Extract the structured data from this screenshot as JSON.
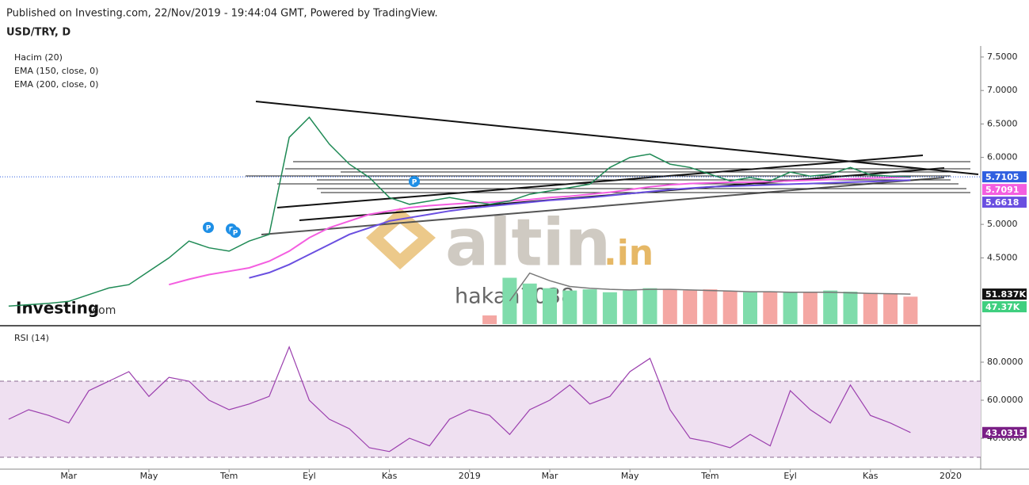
{
  "header": {
    "published": "Published on Investing.com, 22/Nov/2019 - 19:44:04 GMT, Powered by TradingView."
  },
  "watermark": {
    "main": "altin",
    "suffix": ".in",
    "author": "hakan7038",
    "brand": "Investing",
    "brand_suffix": ".com"
  },
  "event_marker": "P",
  "chart_data": [
    {
      "type": "line",
      "title": "USD/TRY, D",
      "ylim": [
        3.51,
        7.665
      ],
      "yticks": [
        {
          "value": 7.5,
          "label": "7.5000"
        },
        {
          "value": 7,
          "label": "7.0000"
        },
        {
          "value": 6.5,
          "label": "6.5000"
        },
        {
          "value": 6,
          "label": "6.0000"
        },
        {
          "value": 5,
          "label": "5.0000"
        },
        {
          "value": 4.5,
          "label": "4.5000"
        }
      ],
      "volume_lim": [
        0,
        480000
      ],
      "series": [
        {
          "color": "#1f8a55",
          "label_color": "#2f5fe0",
          "values": [
            3.78,
            3.8,
            3.82,
            3.85,
            3.95,
            4.05,
            4.1,
            4.3,
            4.5,
            4.75,
            4.65,
            4.6,
            4.75,
            4.85,
            6.3,
            6.6,
            6.2,
            5.9,
            5.7,
            5.4,
            5.3,
            5.35,
            5.4,
            5.35,
            5.3,
            5.35,
            5.45,
            5.5,
            5.55,
            5.6,
            5.85,
            6.0,
            6.05,
            5.9,
            5.85,
            5.75,
            5.65,
            5.7,
            5.65,
            5.78,
            5.72,
            5.75,
            5.85,
            5.74,
            5.72,
            5.7105,
            null,
            null,
            null
          ]
        },
        {
          "name": "EMA (150, close, 0)",
          "color": "#f45ee0",
          "values": [
            null,
            null,
            null,
            null,
            null,
            null,
            null,
            null,
            4.1,
            4.18,
            4.25,
            4.3,
            4.35,
            4.45,
            4.6,
            4.8,
            4.95,
            5.05,
            5.15,
            5.2,
            5.25,
            5.28,
            5.3,
            5.32,
            5.33,
            5.35,
            5.37,
            5.4,
            5.42,
            5.45,
            5.48,
            5.52,
            5.56,
            5.59,
            5.61,
            5.62,
            5.63,
            5.63,
            5.64,
            5.65,
            5.66,
            5.67,
            5.68,
            5.69,
            5.7,
            5.7091,
            null,
            null,
            null
          ]
        },
        {
          "name": "EMA (200, close, 0)",
          "color": "#6a4fe0",
          "values": [
            null,
            null,
            null,
            null,
            null,
            null,
            null,
            null,
            null,
            null,
            null,
            null,
            4.2,
            4.28,
            4.4,
            4.55,
            4.7,
            4.85,
            4.95,
            5.05,
            5.1,
            5.15,
            5.2,
            5.24,
            5.27,
            5.3,
            5.33,
            5.36,
            5.38,
            5.4,
            5.43,
            5.46,
            5.49,
            5.52,
            5.54,
            5.56,
            5.57,
            5.58,
            5.59,
            5.6,
            5.61,
            5.62,
            5.63,
            5.64,
            5.65,
            5.6618,
            null,
            null,
            null
          ]
        },
        {
          "name": "Hacim (20)",
          "type": "bar",
          "axis": "volume",
          "up_color": "#7fdcab",
          "down_color": "#f4a7a3",
          "label_color": "#3fcf7f",
          "ma_color": "#777777",
          "ma_label_color": "#111111",
          "values": [
            null,
            null,
            null,
            null,
            null,
            null,
            null,
            null,
            null,
            null,
            null,
            null,
            null,
            null,
            null,
            null,
            null,
            null,
            null,
            null,
            null,
            null,
            null,
            null,
            15000,
            80000,
            70000,
            62000,
            58000,
            60000,
            55000,
            58000,
            62000,
            60000,
            58000,
            60000,
            57000,
            55000,
            56000,
            55000,
            54000,
            58000,
            56000,
            54000,
            52000,
            47370,
            null,
            null,
            null
          ],
          "value_labels": [
            null,
            null,
            null,
            null,
            null,
            null,
            null,
            null,
            null,
            null,
            null,
            null,
            null,
            null,
            null,
            null,
            null,
            null,
            null,
            null,
            null,
            null,
            null,
            null,
            null,
            null,
            null,
            null,
            null,
            null,
            null,
            null,
            null,
            null,
            null,
            null,
            null,
            null,
            null,
            null,
            null,
            null,
            null,
            null,
            null,
            "47.37K",
            null,
            null,
            null
          ],
          "ma_values": [
            null,
            null,
            null,
            null,
            null,
            null,
            null,
            null,
            null,
            null,
            null,
            null,
            null,
            null,
            null,
            null,
            null,
            null,
            null,
            null,
            null,
            null,
            null,
            null,
            null,
            40000,
            88000,
            75000,
            65000,
            62000,
            60000,
            59000,
            60000,
            60000,
            59000,
            58000,
            57000,
            56000,
            56000,
            55000,
            55000,
            55000,
            54000,
            53000,
            52500,
            51837,
            null,
            null,
            null
          ],
          "ma_value_labels": [
            null,
            null,
            null,
            null,
            null,
            null,
            null,
            null,
            null,
            null,
            null,
            null,
            null,
            null,
            null,
            null,
            null,
            null,
            null,
            null,
            null,
            null,
            null,
            null,
            null,
            null,
            null,
            null,
            null,
            null,
            null,
            null,
            null,
            null,
            null,
            null,
            null,
            null,
            null,
            null,
            null,
            null,
            null,
            null,
            null,
            "51.837K",
            null,
            null,
            null
          ]
        }
      ]
    },
    {
      "type": "line",
      "title": "RSI (14)",
      "categories": [
        null,
        null,
        null,
        "Mar",
        null,
        null,
        null,
        "May",
        null,
        null,
        null,
        "Tem",
        null,
        null,
        null,
        "Eyl",
        null,
        null,
        null,
        "Kas",
        null,
        null,
        null,
        "2019",
        null,
        null,
        null,
        "Mar",
        null,
        null,
        null,
        "May",
        null,
        null,
        null,
        "Tem",
        null,
        null,
        null,
        "Eyl",
        null,
        null,
        null,
        "Kas",
        null,
        null,
        null,
        "2020",
        null
      ],
      "ylim": [
        24.6,
        97.5
      ],
      "yticks": [
        {
          "value": 80,
          "label": "80.0000"
        },
        {
          "value": 60,
          "label": "60.0000"
        },
        {
          "value": 40,
          "label": "40.0000"
        }
      ],
      "bands": [
        30,
        70
      ],
      "band_color": "#efe0f1",
      "series": [
        {
          "color": "#9b3fae",
          "label_color": "#7a1f86",
          "values": [
            50,
            55,
            52,
            48,
            65,
            70,
            75,
            62,
            72,
            70,
            60,
            55,
            58,
            62,
            88,
            60,
            50,
            45,
            35,
            33,
            40,
            36,
            50,
            55,
            52,
            42,
            55,
            60,
            68,
            58,
            62,
            75,
            82,
            55,
            40,
            38,
            35,
            42,
            36,
            65,
            55,
            48,
            68,
            52,
            48,
            43.0315,
            null,
            null,
            null
          ]
        }
      ]
    }
  ]
}
